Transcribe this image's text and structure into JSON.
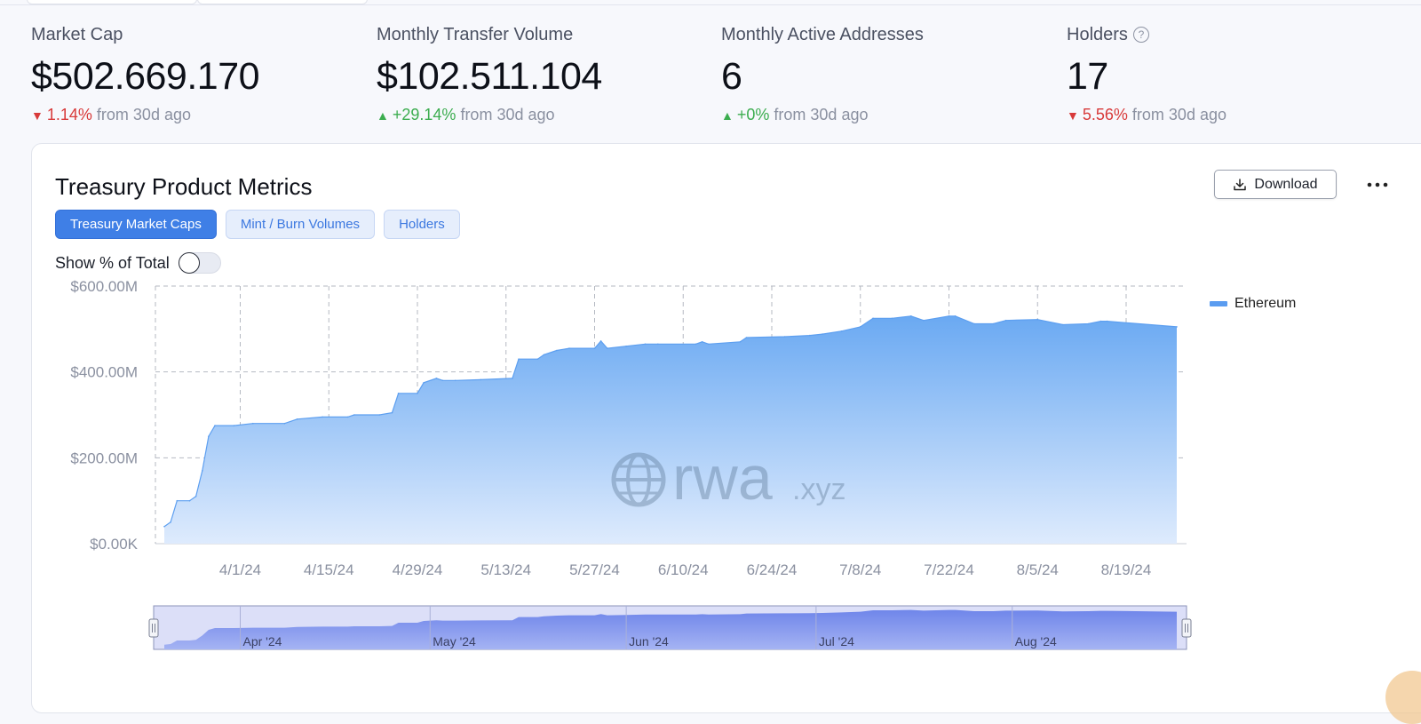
{
  "stats": [
    {
      "label": "Market Cap",
      "value": "$502.669.170",
      "direction": "down",
      "change": "1.14%",
      "suffix": "from 30d ago"
    },
    {
      "label": "Monthly Transfer Volume",
      "value": "$102.511.104",
      "direction": "up",
      "change": "+29.14%",
      "suffix": "from 30d ago"
    },
    {
      "label": "Monthly Active Addresses",
      "value": "6",
      "direction": "up",
      "change": "+0%",
      "suffix": "from 30d ago"
    },
    {
      "label": "Holders",
      "value": "17",
      "direction": "down",
      "change": "5.56%",
      "suffix": "from 30d ago",
      "help_icon": "question-circle-icon"
    }
  ],
  "card": {
    "title": "Treasury Product Metrics",
    "download_label": "Download",
    "download_icon": "download-icon",
    "more_icon": "more-horizontal-icon",
    "tabs": [
      {
        "label": "Treasury Market Caps",
        "active": true
      },
      {
        "label": "Mint / Burn Volumes",
        "active": false
      },
      {
        "label": "Holders",
        "active": false
      }
    ],
    "toggle_label": "Show % of Total",
    "toggle_on": false,
    "watermark": {
      "main": "rwa",
      "suffix": ".xyz",
      "icon": "globe-icon"
    }
  },
  "colors": {
    "accent": "#3f7fe6",
    "area_top": "#6aa9f2",
    "area_bottom": "#deebfd",
    "down": "#d83a3a",
    "up": "#3cad4f",
    "navigator_fill": "#7e95ec"
  },
  "chart_data": {
    "type": "area",
    "ylim": [
      0,
      600
    ],
    "y_ticks": [
      "$0.00K",
      "$200.00M",
      "$400.00M",
      "$600.00M"
    ],
    "x_ticks": [
      "4/1/24",
      "4/15/24",
      "4/29/24",
      "5/13/24",
      "5/27/24",
      "6/10/24",
      "6/24/24",
      "7/8/24",
      "7/22/24",
      "8/5/24",
      "8/19/24"
    ],
    "navigator_ticks": [
      "Apr '24",
      "May '24",
      "Jun '24",
      "Jul '24",
      "Aug '24"
    ],
    "series": [
      {
        "name": "Ethereum",
        "unit": "$M",
        "x": [
          "3/20/24",
          "3/21/24",
          "3/22/24",
          "3/24/24",
          "3/25/24",
          "3/26/24",
          "3/27/24",
          "3/28/24",
          "3/31/24",
          "4/3/24",
          "4/8/24",
          "4/10/24",
          "4/14/24",
          "4/18/24",
          "4/19/24",
          "4/23/24",
          "4/25/24",
          "4/26/24",
          "4/29/24",
          "4/30/24",
          "5/2/24",
          "5/3/24",
          "5/5/24",
          "5/9/24",
          "5/14/24",
          "5/15/24",
          "5/18/24",
          "5/19/24",
          "5/21/24",
          "5/23/24",
          "5/27/24",
          "5/28/24",
          "5/29/24",
          "6/1/24",
          "6/4/24",
          "6/6/24",
          "6/12/24",
          "6/13/24",
          "6/14/24",
          "6/19/24",
          "6/20/24",
          "6/26/24",
          "6/30/24",
          "7/2/24",
          "7/5/24",
          "7/8/24",
          "7/10/24",
          "7/13/24",
          "7/16/24",
          "7/18/24",
          "7/22/24",
          "7/23/24",
          "7/26/24",
          "7/29/24",
          "7/31/24",
          "8/5/24",
          "8/9/24",
          "8/13/24",
          "8/15/24",
          "8/16/24",
          "8/27/24"
        ],
        "values": [
          40,
          50,
          100,
          100,
          110,
          170,
          250,
          275,
          275,
          280,
          280,
          290,
          295,
          295,
          300,
          300,
          305,
          350,
          350,
          375,
          385,
          380,
          380,
          382,
          385,
          430,
          430,
          440,
          450,
          455,
          455,
          472,
          455,
          460,
          465,
          465,
          465,
          470,
          465,
          470,
          480,
          482,
          485,
          488,
          495,
          505,
          525,
          525,
          530,
          520,
          530,
          530,
          512,
          512,
          520,
          522,
          510,
          512,
          518,
          518,
          505
        ]
      }
    ]
  }
}
